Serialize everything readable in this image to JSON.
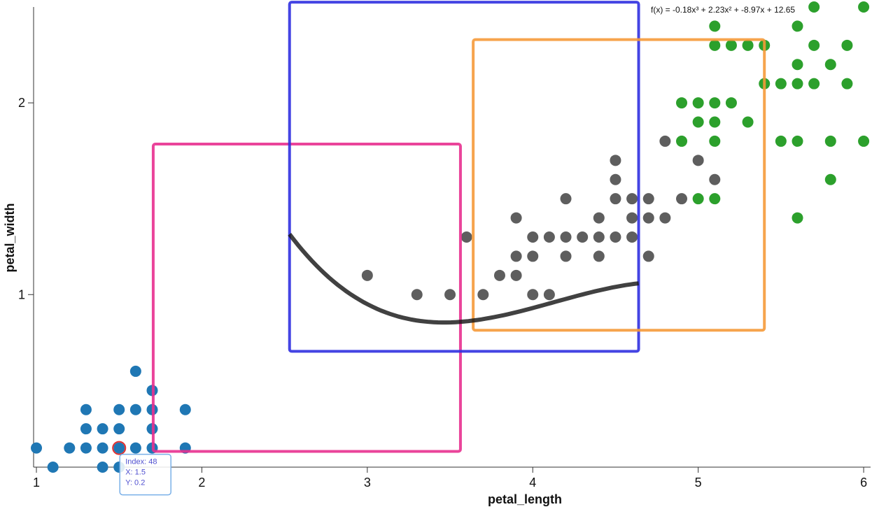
{
  "chart_data": {
    "type": "scatter",
    "x_label": "petal_length",
    "y_label": "petal_width",
    "xlim": [
      0.983,
      6.042
    ],
    "ylim": [
      0.1,
      2.5
    ],
    "xticks": [
      1,
      2,
      3,
      4,
      5,
      6
    ],
    "yticks": [
      1,
      2
    ],
    "series": [
      {
        "color": "#1f77b4",
        "x": [
          1.0,
          1.1,
          1.2,
          1.3,
          1.3,
          1.3,
          1.4,
          1.4,
          1.4,
          1.5,
          1.5,
          1.5,
          1.5,
          1.6,
          1.6,
          1.6,
          1.7,
          1.7,
          1.7,
          1.7,
          1.9,
          1.9
        ],
        "y": [
          0.2,
          0.1,
          0.2,
          0.2,
          0.3,
          0.4,
          0.1,
          0.2,
          0.3,
          0.1,
          0.2,
          0.3,
          0.4,
          0.2,
          0.4,
          0.6,
          0.2,
          0.3,
          0.4,
          0.5,
          0.2,
          0.4
        ]
      },
      {
        "color": "#1a1a1a",
        "x": [
          3.0,
          3.3,
          3.5,
          3.6,
          3.7,
          3.8,
          3.9,
          3.9,
          3.9,
          4.0,
          4.0,
          4.0,
          4.1,
          4.1,
          4.2,
          4.2,
          4.2,
          4.3,
          4.4,
          4.4,
          4.4,
          4.5,
          4.5,
          4.5,
          4.5,
          4.6,
          4.6,
          4.6,
          4.7,
          4.7,
          4.7,
          4.8,
          4.8,
          4.9,
          5.0,
          5.1
        ],
        "y": [
          1.1,
          1.0,
          1.0,
          1.3,
          1.0,
          1.1,
          1.1,
          1.2,
          1.4,
          1.0,
          1.2,
          1.3,
          1.0,
          1.3,
          1.2,
          1.3,
          1.5,
          1.3,
          1.2,
          1.3,
          1.4,
          1.3,
          1.5,
          1.6,
          1.7,
          1.3,
          1.4,
          1.5,
          1.2,
          1.4,
          1.5,
          1.4,
          1.8,
          1.5,
          1.7,
          1.6
        ]
      },
      {
        "color": "#2ca02c",
        "x": [
          4.9,
          4.9,
          5.0,
          5.0,
          5.0,
          5.1,
          5.1,
          5.1,
          5.1,
          5.1,
          5.1,
          5.2,
          5.2,
          5.3,
          5.3,
          5.4,
          5.4,
          5.5,
          5.5,
          5.6,
          5.6,
          5.6,
          5.6,
          5.6,
          5.7,
          5.7,
          5.7,
          5.8,
          5.8,
          5.8,
          5.9,
          5.9,
          6.0,
          6.0
        ],
        "y": [
          1.8,
          2.0,
          1.5,
          1.9,
          2.0,
          1.5,
          1.8,
          1.9,
          2.0,
          2.3,
          2.4,
          2.0,
          2.3,
          1.9,
          2.3,
          2.1,
          2.3,
          1.8,
          2.1,
          1.4,
          1.8,
          2.1,
          2.2,
          2.4,
          2.1,
          2.3,
          2.5,
          1.6,
          1.8,
          2.2,
          2.1,
          2.3,
          1.8,
          2.5
        ]
      }
    ],
    "regions": [
      {
        "color": "#e8308f",
        "x": [
          1.706,
          3.563
        ],
        "y": [
          0.182,
          1.785
        ]
      },
      {
        "color": "#3030e0",
        "x": [
          2.53,
          4.64
        ],
        "y": [
          0.704,
          2.525
        ]
      },
      {
        "color": "#f59a3a",
        "x": [
          3.64,
          5.4
        ],
        "y": [
          0.814,
          2.33
        ]
      }
    ],
    "fit": {
      "label": "f(x) = -0.18x³ + 2.23x² + -8.97x + 12.65",
      "coefficients": [
        -0.18,
        2.23,
        -8.97,
        12.65
      ],
      "x": [
        2.53,
        4.64
      ]
    },
    "tooltip": {
      "lines": [
        "Index: 48",
        "X: 1.5",
        "Y: 0.2"
      ],
      "x": 1.5,
      "y": 0.2
    }
  }
}
